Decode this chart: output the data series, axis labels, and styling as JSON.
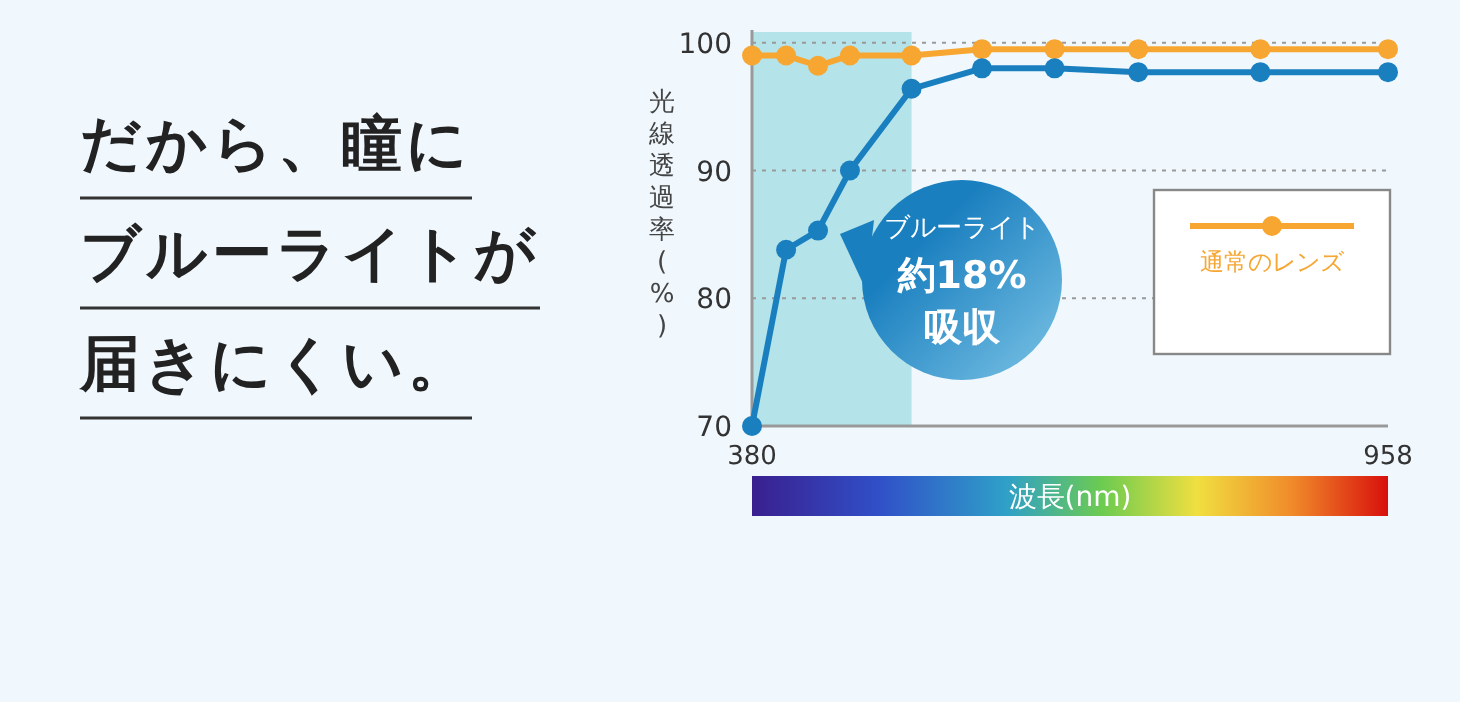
{
  "chart_data": {
    "type": "line",
    "title": "だから、瞳にブルーライトが届きにくい。",
    "xlabel": "波長(nm)",
    "ylabel": "光線透過率(%)",
    "annotations": [
      "ブルーライト",
      "約18%",
      "吸収"
    ],
    "x": [
      380,
      411,
      440,
      469,
      525,
      589,
      655,
      731,
      842,
      958
    ],
    "series": [
      {
        "name": "通常のレンズ",
        "color": "#f7a631",
        "values": [
          99.0,
          99.0,
          98.2,
          99.0,
          99.0,
          99.5,
          99.5,
          99.5,
          99.5,
          99.5
        ]
      },
      {
        "color": "#1a7fbf",
        "values": [
          70,
          83.8,
          85.3,
          90,
          96.4,
          98.0,
          98.0,
          97.7,
          97.7,
          97.7
        ]
      }
    ],
    "xlim": [
      380,
      958
    ],
    "ylim": [
      70,
      101
    ],
    "xticks": [
      380,
      958
    ],
    "yticks": [
      70,
      80,
      90,
      100
    ],
    "bands": [
      {
        "axis": "x",
        "from": 380,
        "to": 525,
        "color": "#b4e3ea"
      }
    ],
    "grid": "y",
    "legend": "right",
    "marker": "circle",
    "line_style": "solid"
  }
}
